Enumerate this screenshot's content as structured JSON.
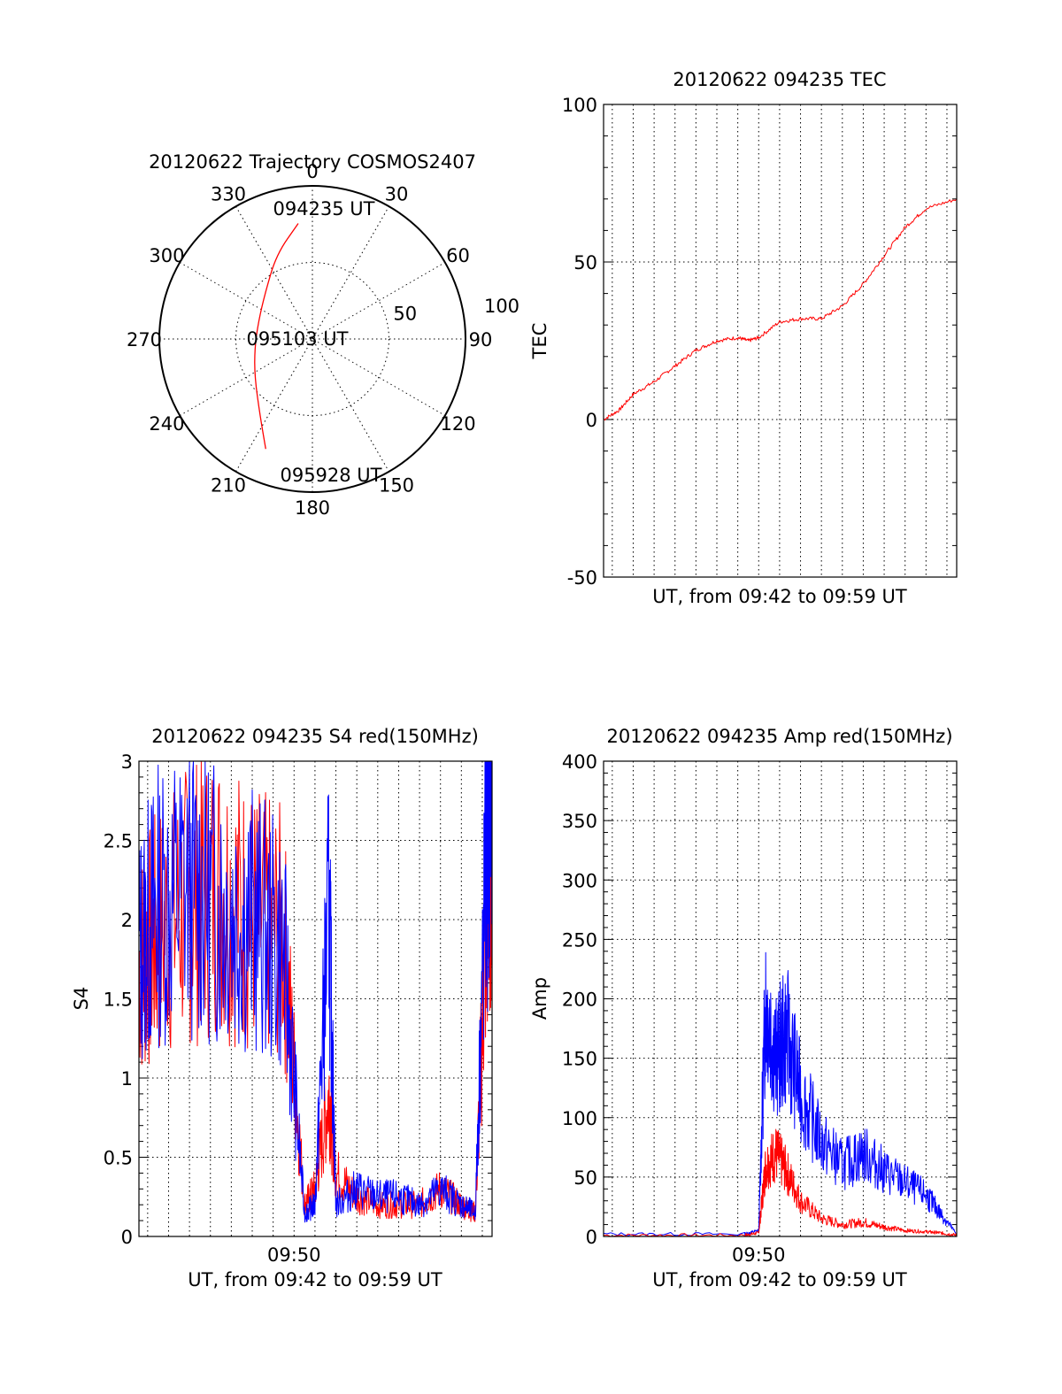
{
  "colors": {
    "red": "#ff0000",
    "blue": "#0000ff",
    "axis": "#000000"
  },
  "chart_data": [
    {
      "type": "polar",
      "title": "20120622 Trajectory COSMOS2407",
      "azimuth_labels": [
        "0",
        "30",
        "60",
        "90",
        "120",
        "150",
        "180",
        "210",
        "240",
        "270",
        "300",
        "330"
      ],
      "radius_labels": [
        "50",
        "100"
      ],
      "rlim": [
        0,
        100
      ],
      "grid": true,
      "annotations": [
        "094235 UT",
        "095103 UT",
        "095928 UT"
      ],
      "series": [
        {
          "color": "red",
          "points": [
            {
              "az": 353,
              "r": 76
            },
            {
              "az": 337,
              "r": 60
            },
            {
              "az": 314,
              "r": 43
            },
            {
              "az": 288,
              "r": 37
            },
            {
              "az": 262,
              "r": 38
            },
            {
              "az": 237,
              "r": 45
            },
            {
              "az": 214,
              "r": 61
            },
            {
              "az": 203,
              "r": 78
            }
          ]
        }
      ]
    },
    {
      "type": "line",
      "title": "20120622 094235 TEC",
      "xlabel": "UT, from 09:42 to 09:59 UT",
      "ylabel": "TEC",
      "xlim": [
        "09:42:35",
        "09:59:28"
      ],
      "ylim": [
        -50,
        100
      ],
      "yticks": [
        "-50",
        "0",
        "50",
        "100"
      ],
      "grid": true,
      "series": [
        {
          "color": "red",
          "x": [
            "09:42:35",
            "09:43:20",
            "09:44:00",
            "09:45:00",
            "09:46:00",
            "09:47:00",
            "09:48:00",
            "09:49:00",
            "09:49:30",
            "09:50:00",
            "09:51:00",
            "09:52:00",
            "09:53:00",
            "09:54:00",
            "09:55:00",
            "09:56:00",
            "09:57:00",
            "09:58:00",
            "09:59:28"
          ],
          "y": [
            0,
            3,
            8,
            12,
            17,
            22,
            25,
            26,
            25,
            26,
            31,
            32,
            32,
            36,
            43,
            52,
            61,
            67,
            70
          ]
        }
      ]
    },
    {
      "type": "line",
      "title": "20120622 094235 S4 red(150MHz)",
      "xlabel": "UT, from 09:42 to 09:59 UT",
      "ylabel": "S4",
      "xlim": [
        "09:42:35",
        "09:59:28"
      ],
      "ylim": [
        0,
        3
      ],
      "xticks": [
        "09:50"
      ],
      "yticks": [
        "0",
        "0.5",
        "1",
        "1.5",
        "2",
        "2.5",
        "3"
      ],
      "grid": true,
      "series": [
        {
          "color": "red",
          "x": [
            "09:42:35",
            "09:43:30",
            "09:45:00",
            "09:46:30",
            "09:48:00",
            "09:49:30",
            "09:50:30",
            "09:51:00",
            "09:51:40",
            "09:52:00",
            "09:53:00",
            "09:54:00",
            "09:55:00",
            "09:56:00",
            "09:57:00",
            "09:58:00",
            "09:58:40",
            "09:59:10",
            "09:59:28"
          ],
          "y": [
            1.7,
            1.9,
            2.1,
            2.2,
            2.0,
            1.9,
            0.2,
            0.3,
            0.9,
            0.4,
            0.25,
            0.2,
            0.2,
            0.2,
            0.3,
            0.2,
            0.15,
            1.9,
            2.7
          ]
        },
        {
          "color": "blue",
          "x": [
            "09:42:35",
            "09:43:30",
            "09:45:00",
            "09:46:30",
            "09:48:00",
            "09:49:30",
            "09:50:30",
            "09:51:00",
            "09:51:40",
            "09:52:00",
            "09:53:00",
            "09:54:00",
            "09:55:00",
            "09:56:00",
            "09:57:00",
            "09:58:00",
            "09:58:40",
            "09:59:10",
            "09:59:28"
          ],
          "y": [
            1.8,
            2.1,
            2.2,
            2.1,
            2.0,
            1.8,
            0.15,
            0.2,
            2.1,
            0.2,
            0.3,
            0.25,
            0.25,
            0.2,
            0.3,
            0.2,
            0.15,
            2.3,
            2.8
          ]
        }
      ]
    },
    {
      "type": "line",
      "title": "20120622 094235 Amp red(150MHz)",
      "xlabel": "UT, from 09:42 to 09:59 UT",
      "ylabel": "Amp",
      "xlim": [
        "09:42:35",
        "09:59:28"
      ],
      "ylim": [
        0,
        400
      ],
      "xticks": [
        "09:50"
      ],
      "yticks": [
        "0",
        "50",
        "100",
        "150",
        "200",
        "250",
        "300",
        "350",
        "400"
      ],
      "grid": true,
      "series": [
        {
          "color": "blue",
          "x": [
            "09:42:35",
            "09:49:20",
            "09:50:00",
            "09:50:20",
            "09:50:50",
            "09:51:20",
            "09:52:00",
            "09:53:00",
            "09:54:00",
            "09:55:00",
            "09:56:00",
            "09:57:00",
            "09:58:00",
            "09:58:40",
            "09:59:28"
          ],
          "y": [
            2,
            2,
            5,
            200,
            150,
            170,
            120,
            80,
            60,
            70,
            55,
            45,
            35,
            20,
            2
          ]
        },
        {
          "color": "red",
          "x": [
            "09:42:35",
            "09:49:20",
            "09:50:00",
            "09:50:20",
            "09:50:50",
            "09:51:20",
            "09:52:00",
            "09:53:00",
            "09:54:00",
            "09:55:00",
            "09:56:00",
            "09:57:00",
            "09:58:00",
            "09:58:40",
            "09:59:28"
          ],
          "y": [
            1,
            1,
            3,
            60,
            70,
            55,
            30,
            15,
            10,
            12,
            8,
            5,
            4,
            3,
            1
          ]
        }
      ]
    }
  ]
}
